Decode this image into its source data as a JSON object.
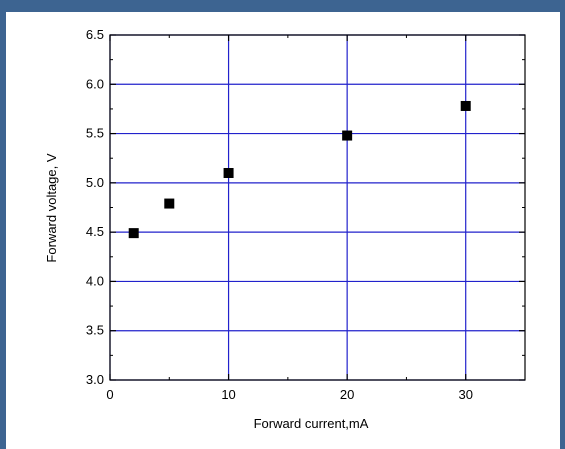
{
  "chart_data": {
    "type": "scatter",
    "title": "",
    "xlabel": "Forward current,mA",
    "ylabel": "Forward voltage, V",
    "xlim": [
      0,
      35
    ],
    "ylim": [
      3.0,
      6.5
    ],
    "x_ticks": [
      0,
      10,
      20,
      30
    ],
    "x_tick_labels": [
      "0",
      "10",
      "20",
      "30"
    ],
    "y_ticks": [
      3.0,
      3.5,
      4.0,
      4.5,
      5.0,
      5.5,
      6.0,
      6.5
    ],
    "y_tick_labels": [
      "3.0",
      "3.5",
      "4.0",
      "4.5",
      "5.0",
      "5.5",
      "6.0",
      "6.5"
    ],
    "grid": true,
    "grid_color": "#2222cc",
    "frame_color": "#3d6491",
    "marker": "square",
    "marker_color": "#000000",
    "series": [
      {
        "x": [
          2,
          5,
          10,
          20,
          30
        ],
        "y": [
          4.49,
          4.79,
          5.1,
          5.48,
          5.78
        ]
      }
    ]
  }
}
